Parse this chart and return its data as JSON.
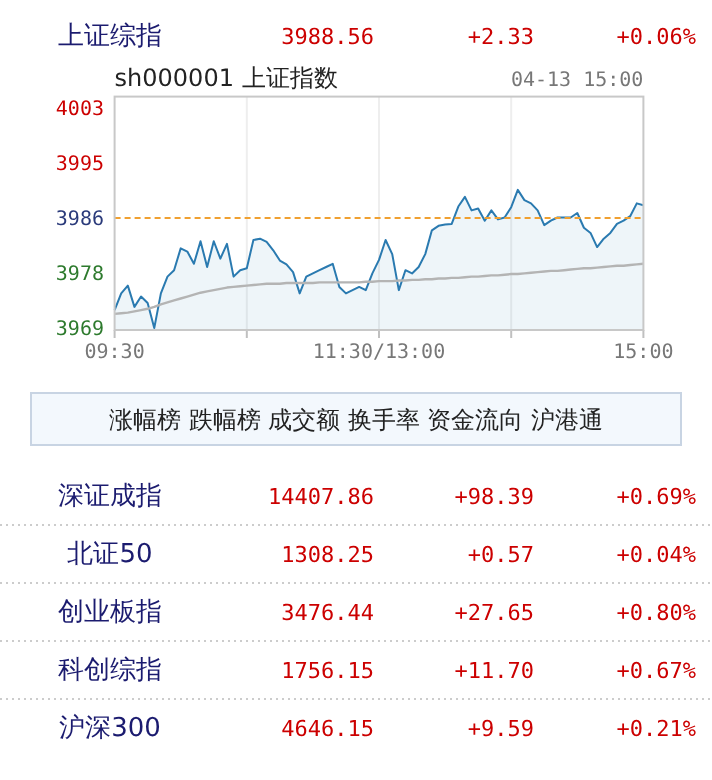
{
  "chart_data": [
    {
      "type": "other",
      "annotations": [
        "上证综指",
        "3988.56",
        "+2.33",
        "+0.06%"
      ]
    },
    {
      "type": "line",
      "title": "sh000001 上证指数",
      "annotations": [
        "04-13 15:00"
      ],
      "categories": [
        "09:30",
        null,
        null,
        null,
        null,
        null,
        null,
        null,
        null,
        null,
        null,
        null,
        null,
        null,
        null,
        null,
        null,
        null,
        null,
        null,
        null,
        null,
        null,
        null,
        null,
        null,
        null,
        null,
        null,
        null,
        null,
        null,
        null,
        null,
        null,
        null,
        null,
        null,
        null,
        null,
        "11:30/13:00",
        null,
        null,
        null,
        null,
        null,
        null,
        null,
        null,
        null,
        null,
        null,
        null,
        null,
        null,
        null,
        null,
        null,
        null,
        null,
        null,
        null,
        null,
        null,
        null,
        null,
        null,
        null,
        null,
        null,
        null,
        null,
        null,
        null,
        null,
        null,
        null,
        null,
        null,
        null,
        "15:00"
      ],
      "ylim": [
        3968.8,
        4005.1
      ],
      "yticks": [
        {
          "value": 3969.1,
          "label": "3969"
        },
        {
          "value": 3977.7,
          "label": "3978"
        },
        {
          "value": 3986.2,
          "label": "3986"
        },
        {
          "value": 3994.8,
          "label": "3995"
        },
        {
          "value": 4003.4,
          "label": "4003"
        }
      ],
      "grid": "x",
      "ref_lines": [
        {
          "axis": "y",
          "value": 3986.2,
          "color": "#f0a030",
          "line_style": "dashed"
        }
      ],
      "series": [
        {
          "type": "area",
          "color": "#2a7ab0",
          "values": [
            3971.9,
            3974.5,
            3975.7,
            3972.4,
            3974.0,
            3973.0,
            3969.1,
            3974.5,
            3977.1,
            3978.1,
            3981.5,
            3981.0,
            3979.1,
            3982.6,
            3978.6,
            3982.6,
            3979.9,
            3982.2,
            3977.1,
            3978.1,
            3978.4,
            3982.8,
            3983.0,
            3982.5,
            3981.2,
            3979.6,
            3979.0,
            3977.8,
            3974.5,
            3977.1,
            3977.6,
            3978.1,
            3978.6,
            3979.1,
            3975.5,
            3974.5,
            3975.0,
            3975.5,
            3975.0,
            3977.6,
            3979.7,
            3982.8,
            3980.6,
            3975.0,
            3978.1,
            3977.6,
            3978.6,
            3980.6,
            3984.3,
            3985.0,
            3985.2,
            3985.3,
            3988.0,
            3989.5,
            3987.4,
            3987.7,
            3985.8,
            3987.4,
            3986.0,
            3986.3,
            3987.9,
            3990.6,
            3989.0,
            3988.5,
            3987.4,
            3985.1,
            3985.8,
            3986.3,
            3986.3,
            3986.3,
            3987.0,
            3984.7,
            3983.9,
            3981.7,
            3983.0,
            3983.9,
            3985.3,
            3985.8,
            3986.5,
            3988.5,
            3988.2
          ]
        },
        {
          "type": "line",
          "color": "#b4b4b4",
          "values": [
            3971.3,
            3971.4,
            3971.5,
            3971.7,
            3971.9,
            3972.1,
            3972.4,
            3972.8,
            3973.1,
            3973.4,
            3973.7,
            3974.0,
            3974.3,
            3974.6,
            3974.8,
            3975.0,
            3975.2,
            3975.4,
            3975.5,
            3975.6,
            3975.7,
            3975.8,
            3975.9,
            3976.0,
            3976.0,
            3976.0,
            3976.1,
            3976.1,
            3976.1,
            3976.1,
            3976.1,
            3976.2,
            3976.2,
            3976.2,
            3976.2,
            3976.2,
            3976.2,
            3976.2,
            3976.3,
            3976.3,
            3976.4,
            3976.4,
            3976.4,
            3976.5,
            3976.5,
            3976.6,
            3976.6,
            3976.7,
            3976.7,
            3976.8,
            3976.8,
            3976.9,
            3976.9,
            3977.0,
            3977.1,
            3977.1,
            3977.2,
            3977.3,
            3977.3,
            3977.4,
            3977.5,
            3977.5,
            3977.6,
            3977.7,
            3977.8,
            3977.9,
            3978.0,
            3978.0,
            3978.1,
            3978.2,
            3978.3,
            3978.4,
            3978.4,
            3978.5,
            3978.6,
            3978.7,
            3978.8,
            3978.8,
            3978.9,
            3979.0,
            3979.1
          ]
        }
      ]
    },
    {
      "type": "other",
      "title": "涨幅榜 跌幅榜 成交额 换手率 资金流向 沪港通",
      "annotations": [
        "深证成指",
        "14407.86",
        "+98.39",
        "+0.69%",
        "北证50",
        "1308.25",
        "+0.57",
        "+0.04%",
        "创业板指",
        "3476.44",
        "+27.65",
        "+0.80%",
        "科创综指",
        "1756.15",
        "+11.70",
        "+0.67%",
        "沪深300",
        "4646.15",
        "+9.59",
        "+0.21%"
      ]
    }
  ]
}
